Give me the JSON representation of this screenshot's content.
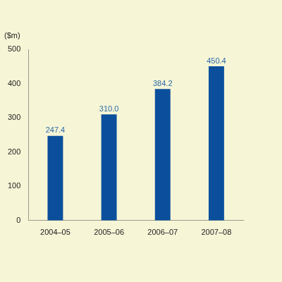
{
  "chart_data": {
    "type": "bar",
    "y_label": "($m)",
    "categories": [
      "2004–05",
      "2005–06",
      "2006–07",
      "2007–08"
    ],
    "values": [
      247.4,
      310.0,
      384.2,
      450.4
    ],
    "value_labels": [
      "247.4",
      "310.0",
      "384.2",
      "450.4"
    ],
    "color": "#0b4f9c",
    "ylim": [
      0,
      500
    ],
    "yticks": [
      0,
      100,
      200,
      300,
      400,
      500
    ],
    "grid": false,
    "data_labels": true
  }
}
